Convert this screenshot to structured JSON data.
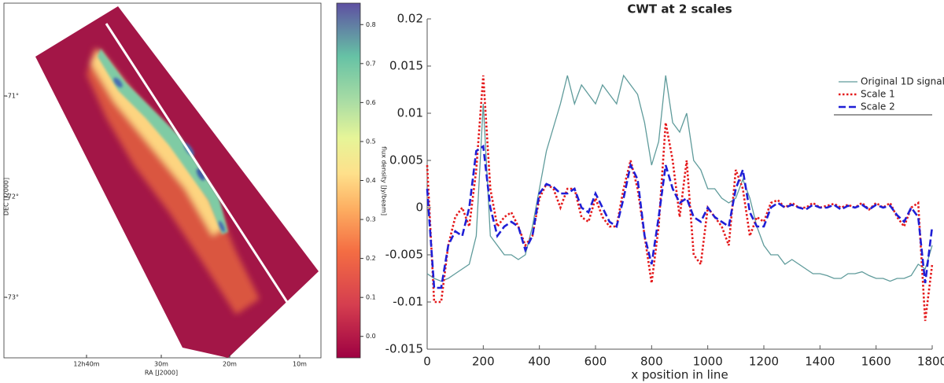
{
  "chart_data": [
    {
      "type": "image",
      "xlabel": "RA [J2000]",
      "ylabel": "DEC [J2000]",
      "xtick_labels": [
        "12h40m",
        "30m",
        "20m",
        "10m"
      ],
      "ytick_labels": [
        "-71°",
        "-72°",
        "-73°"
      ],
      "colorbar": {
        "label": "flux density [Jy/beam]",
        "lim": [
          -0.055,
          0.855
        ],
        "ticks": [
          {
            "value": 0,
            "label": "0.0"
          },
          0.1,
          0.2,
          0.3,
          0.4,
          0.5,
          0.6,
          0.7,
          0.8
        ]
      }
    },
    {
      "type": "line",
      "title": "CWT at 2 scales",
      "xlabel": "x position in line",
      "xlim": [
        0,
        1800
      ],
      "xticks": [
        0,
        200,
        400,
        600,
        800,
        1000,
        1200,
        1400,
        1600,
        1800
      ],
      "ylim": [
        -0.015,
        0.02
      ],
      "yticks": [
        -0.015,
        -0.01,
        -0.005,
        0,
        0.005,
        0.01,
        0.015,
        0.02
      ],
      "legend": "upper right",
      "x": [
        0,
        25,
        50,
        75,
        100,
        125,
        150,
        175,
        200,
        225,
        250,
        275,
        300,
        325,
        350,
        375,
        400,
        425,
        450,
        475,
        500,
        525,
        550,
        575,
        600,
        625,
        650,
        675,
        700,
        725,
        750,
        775,
        800,
        825,
        850,
        875,
        900,
        925,
        950,
        975,
        1000,
        1025,
        1050,
        1075,
        1100,
        1125,
        1150,
        1175,
        1200,
        1225,
        1250,
        1275,
        1300,
        1325,
        1350,
        1375,
        1400,
        1425,
        1450,
        1475,
        1500,
        1525,
        1550,
        1575,
        1600,
        1625,
        1650,
        1675,
        1700,
        1725,
        1750,
        1775,
        1800
      ],
      "series": [
        {
          "name": "Original 1D signal",
          "color": "#5f9b9b",
          "style": "solid",
          "values": [
            -0.007,
            -0.0075,
            -0.0078,
            -0.0075,
            -0.007,
            -0.0065,
            -0.006,
            -0.003,
            0.011,
            -0.003,
            -0.004,
            -0.005,
            -0.005,
            -0.0055,
            -0.005,
            -0.002,
            0.002,
            0.006,
            0.0085,
            0.011,
            0.014,
            0.011,
            0.013,
            0.012,
            0.011,
            0.013,
            0.012,
            0.011,
            0.014,
            0.013,
            0.012,
            0.009,
            0.0045,
            0.007,
            0.014,
            0.009,
            0.008,
            0.01,
            0.005,
            0.004,
            0.002,
            0.002,
            0.001,
            0.0005,
            0.001,
            0.003,
            0.001,
            -0.002,
            -0.004,
            -0.005,
            -0.005,
            -0.006,
            -0.0055,
            -0.006,
            -0.0065,
            -0.007,
            -0.007,
            -0.0072,
            -0.0075,
            -0.0075,
            -0.007,
            -0.007,
            -0.0068,
            -0.0072,
            -0.0075,
            -0.0075,
            -0.0078,
            -0.0075,
            -0.0075,
            -0.0072,
            -0.006,
            -0.0065,
            -0.004
          ]
        },
        {
          "name": "Scale 1",
          "color": "#e41a1c",
          "style": "dotted",
          "values": [
            0.0045,
            -0.01,
            -0.01,
            -0.004,
            -0.001,
            0,
            -0.002,
            0.004,
            0.014,
            0.002,
            -0.002,
            -0.001,
            -0.0005,
            -0.002,
            -0.004,
            -0.003,
            0.001,
            0.0025,
            0.002,
            0,
            0.002,
            0.002,
            -0.001,
            -0.0015,
            0.001,
            -0.001,
            -0.002,
            -0.002,
            0.002,
            0.005,
            0.002,
            -0.003,
            -0.008,
            -0.002,
            0.009,
            0.005,
            -0.001,
            0.005,
            -0.005,
            -0.006,
            0,
            -0.001,
            -0.002,
            -0.004,
            0.004,
            0.002,
            -0.003,
            -0.001,
            -0.0015,
            0.0005,
            0.0008,
            0,
            0.0005,
            0,
            0,
            0.0005,
            0,
            0.0002,
            0.0004,
            0,
            0.0003,
            0,
            0.0005,
            -0.0002,
            0.0005,
            0,
            0.0005,
            -0.001,
            -0.002,
            0,
            0.0005,
            -0.012,
            -0.006
          ]
        },
        {
          "name": "Scale 2",
          "color": "#1f1fd6",
          "style": "dashed",
          "values": [
            0.002,
            -0.0085,
            -0.0085,
            -0.004,
            -0.0025,
            -0.003,
            0,
            0.006,
            0.0065,
            0,
            -0.003,
            -0.002,
            -0.0015,
            -0.002,
            -0.0045,
            -0.003,
            0.0015,
            0.0025,
            0.0022,
            0.0015,
            0.0015,
            0.002,
            0,
            -0.0005,
            0.0015,
            0,
            -0.0015,
            -0.002,
            0.001,
            0.0045,
            0.003,
            -0.003,
            -0.006,
            -0.001,
            0.0045,
            0.002,
            0.0005,
            0.001,
            -0.001,
            -0.0015,
            0,
            -0.001,
            -0.0015,
            -0.002,
            0.002,
            0.004,
            -0.0005,
            -0.002,
            -0.002,
            0,
            0.0005,
            0,
            0.0003,
            0,
            -0.0002,
            0.0003,
            0,
            0,
            0.0003,
            -0.0002,
            0.0002,
            0,
            0.0003,
            -0.0002,
            0.0003,
            0,
            0.0002,
            -0.0008,
            -0.0015,
            0,
            -0.001,
            -0.008,
            -0.002
          ]
        }
      ]
    }
  ]
}
